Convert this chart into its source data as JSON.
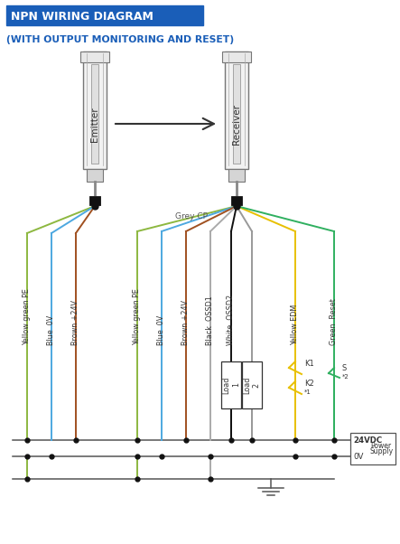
{
  "title1": "NPN WIRING DIAGRAM",
  "title1_bg": "#1a5eb8",
  "title1_color": "#ffffff",
  "title2": "(WITH OUTPUT MONITORING AND RESET)",
  "title2_color": "#1a5eb8",
  "wc_yg": "#8db840",
  "wc_bl": "#4da8e0",
  "wc_br": "#a05020",
  "wc_gr": "#aaaaaa",
  "wc_bk": "#111111",
  "wc_ww": "#999999",
  "wc_yw": "#e8c000",
  "wc_gn": "#30b060",
  "fig_bg": "#ffffff",
  "bus_color": "#555555",
  "emitter_label": "Emitter",
  "receiver_label": "Receiver",
  "grey_cp_label": "Grey CP",
  "lbl_left": [
    "Yellow green PE",
    "Blue  0V",
    "Brown +24V"
  ],
  "lbl_right": [
    "Yellow green PE",
    "Blue  0V",
    "Brown +24V",
    "Black  OSSD1",
    "White  OSSD2",
    "Yellow EDM",
    "Green  Reset"
  ],
  "load1_label": "Load\n1",
  "load2_label": "Load\n2",
  "k1_label": "K1",
  "k2_label": "K2",
  "s_label": "S",
  "fn1": "*1",
  "fn2": "*2",
  "ps_24vdc": "24VDC",
  "ps_power": "Power",
  "ps_supply": "Supply",
  "ov_label": "0V"
}
